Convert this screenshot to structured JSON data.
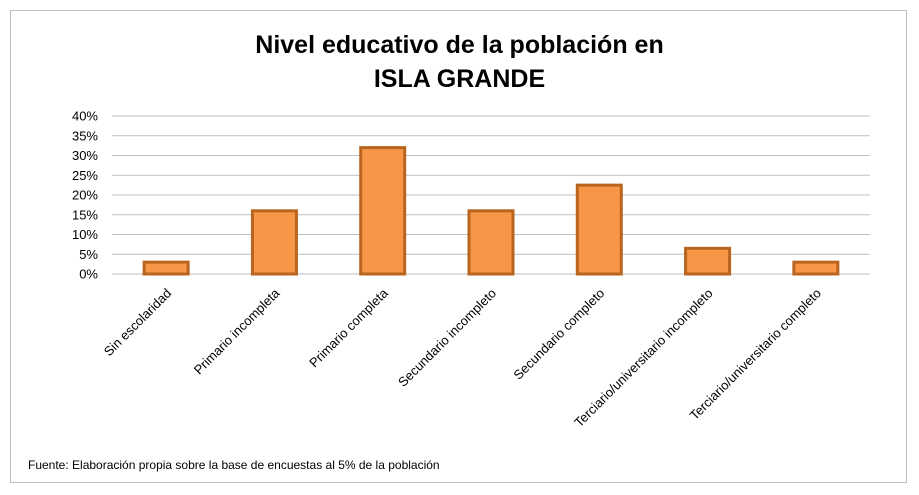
{
  "chart_data": {
    "type": "bar",
    "title_line1": "Nivel educativo de la población en",
    "title_line2": "ISLA GRANDE",
    "categories": [
      "Sin escolaridad",
      "Primario incompleta",
      "Primario completa",
      "Secundario incompleto",
      "Secundario completo",
      "Terciario/universitario incompleto",
      "Terciario/universitario completo"
    ],
    "values": [
      3,
      16,
      32,
      16,
      22.5,
      6.5,
      3
    ],
    "ylim": [
      0,
      40
    ],
    "yticks": [
      0,
      5,
      10,
      15,
      20,
      25,
      30,
      35,
      40
    ],
    "ytick_labels": [
      "0%",
      "5%",
      "10%",
      "15%",
      "20%",
      "25%",
      "30%",
      "35%",
      "40%"
    ],
    "grid": true,
    "bar_fill": "#f79646",
    "bar_stroke": "#b9651f",
    "gridline_color": "#bfbfbf"
  },
  "footer": {
    "source": "Fuente: Elaboración propia sobre la base de encuestas al 5%  de la población"
  }
}
